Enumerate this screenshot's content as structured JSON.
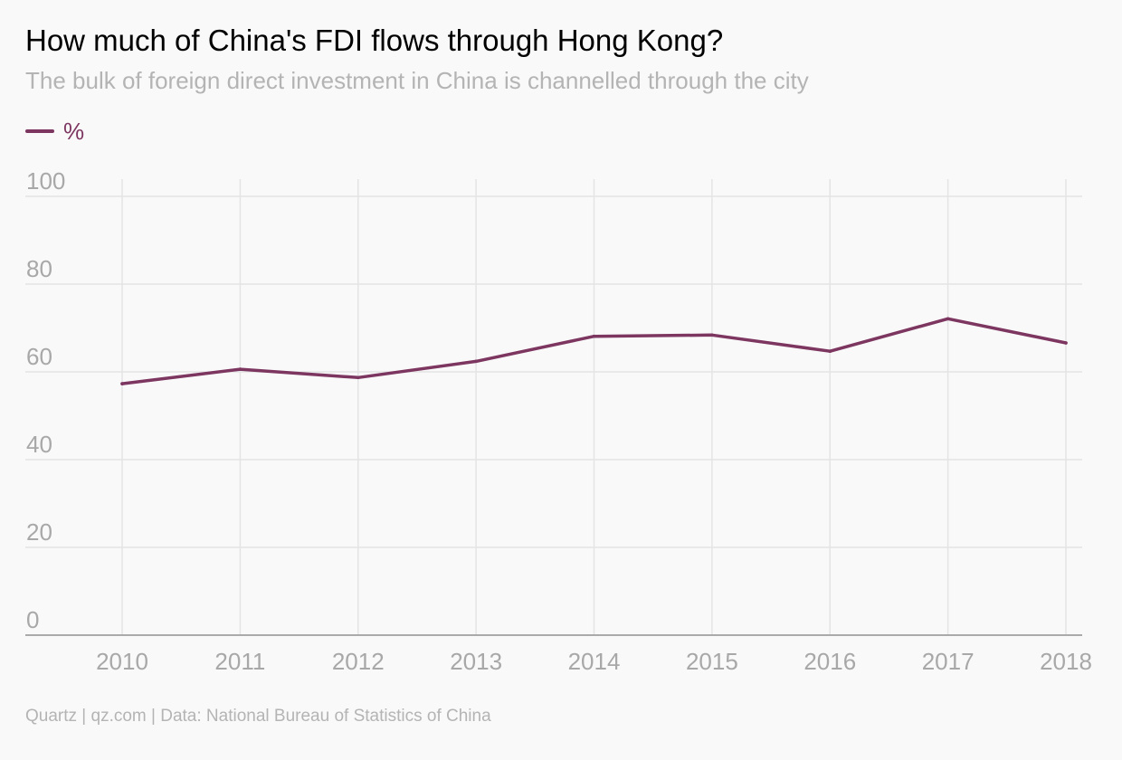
{
  "title": "How much of China's FDI flows through Hong Kong?",
  "subtitle": "The bulk of foreign direct investment in China is channelled through the city",
  "source": "Quartz | qz.com | Data: National Bureau of Statistics of China",
  "colors": {
    "series": "#7d3660",
    "grid": "#e4e4e4",
    "axis": "#aaaaaa",
    "tick_text": "#a8a8a8",
    "subtitle": "#b4b4b4",
    "background": "#f9f9f9"
  },
  "chart_data": {
    "type": "line",
    "title": "How much of China's FDI flows through Hong Kong?",
    "subtitle": "The bulk of foreign direct investment in China is channelled through the city",
    "x": [
      "2010",
      "2011",
      "2012",
      "2013",
      "2014",
      "2015",
      "2016",
      "2017",
      "2018"
    ],
    "series": [
      {
        "name": "%",
        "values": [
          57.3,
          60.6,
          58.7,
          62.4,
          68.1,
          68.4,
          64.7,
          72.1,
          66.6
        ]
      }
    ],
    "xlabel": "",
    "ylabel": "",
    "ylim": [
      0,
      100
    ],
    "yticks": [
      "0",
      "20",
      "40",
      "60",
      "80",
      "100"
    ],
    "grid": true,
    "legend": "top-left"
  }
}
